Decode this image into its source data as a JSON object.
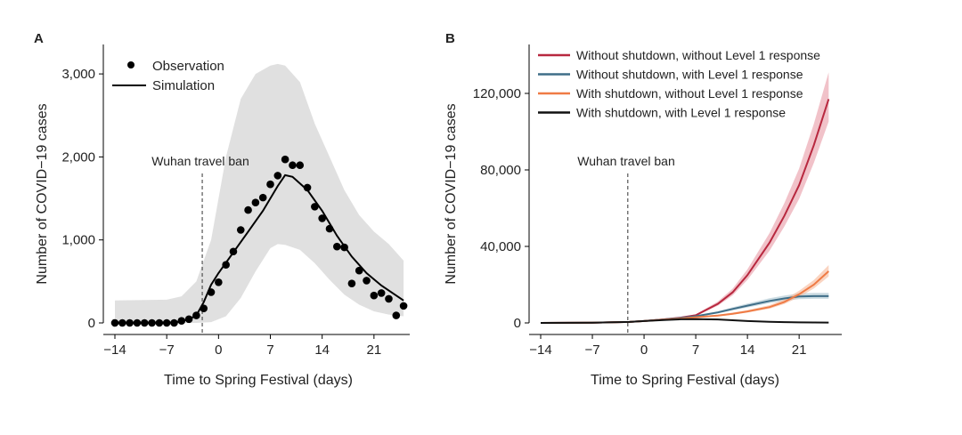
{
  "chart_data": [
    {
      "panel_label": "A",
      "type": "scatter+line",
      "xlabel": "Time to Spring Festival (days)",
      "ylabel": "Number of COVID−19 cases",
      "xlim": [
        -15,
        26
      ],
      "ylim": [
        0,
        3200
      ],
      "xticks": [
        -14,
        -7,
        0,
        7,
        14,
        21
      ],
      "xtick_labels": [
        "−14",
        "−7",
        "0",
        "7",
        "14",
        "21"
      ],
      "yticks": [
        0,
        1000,
        2000,
        3000
      ],
      "ytick_labels": [
        "0",
        "1,000",
        "2,000",
        "3,000"
      ],
      "legend": {
        "placement": "top-left",
        "entries": [
          "Observation",
          "Simulation"
        ]
      },
      "annotation": {
        "text": "Wuhan travel ban",
        "x": -2.2
      },
      "observation": {
        "x": [
          -14,
          -13,
          -12,
          -11,
          -10,
          -9,
          -8,
          -7,
          -6,
          -5,
          -4,
          -3,
          -2,
          -1,
          0,
          1,
          2,
          3,
          4,
          5,
          6,
          7,
          8,
          9,
          10,
          11,
          12,
          13,
          14,
          15,
          16,
          17,
          18,
          19,
          20,
          21,
          22,
          23,
          24,
          25
        ],
        "y": [
          0,
          0,
          0,
          0,
          0,
          0,
          0,
          0,
          0,
          25,
          45,
          90,
          175,
          370,
          490,
          700,
          860,
          1120,
          1360,
          1450,
          1510,
          1670,
          1775,
          1970,
          1900,
          1900,
          1630,
          1400,
          1260,
          1135,
          920,
          910,
          475,
          630,
          510,
          330,
          360,
          290,
          90,
          205
        ]
      },
      "simulation": {
        "x": [
          -14,
          -10,
          -6,
          -5,
          -4,
          -3,
          -2,
          -1,
          0,
          2,
          4,
          6,
          8,
          9,
          10,
          12,
          14,
          16,
          18,
          20,
          22,
          24,
          25
        ],
        "y": [
          0,
          0,
          5,
          20,
          45,
          90,
          250,
          460,
          600,
          850,
          1100,
          1350,
          1650,
          1780,
          1760,
          1600,
          1350,
          1050,
          800,
          600,
          450,
          330,
          270
        ]
      },
      "band": {
        "x": [
          -14,
          -7,
          -5,
          -3,
          -1,
          1,
          3,
          5,
          7,
          8,
          9,
          11,
          13,
          15,
          17,
          19,
          21,
          23,
          25
        ],
        "upper": [
          270,
          280,
          320,
          500,
          1000,
          2000,
          2700,
          3000,
          3100,
          3120,
          3100,
          2900,
          2400,
          2000,
          1600,
          1300,
          1100,
          950,
          750
        ],
        "lower": [
          0,
          0,
          0,
          0,
          10,
          80,
          300,
          620,
          900,
          950,
          940,
          880,
          720,
          520,
          340,
          220,
          140,
          100,
          80
        ]
      }
    },
    {
      "panel_label": "B",
      "type": "line",
      "xlabel": "Time to Spring Festival (days)",
      "ylabel": "Number of COVID−19 cases",
      "xlim": [
        -15,
        26
      ],
      "ylim": [
        -3000,
        140000
      ],
      "xticks": [
        -14,
        -7,
        0,
        7,
        14,
        21
      ],
      "xtick_labels": [
        "−14",
        "−7",
        "0",
        "7",
        "14",
        "21"
      ],
      "yticks": [
        0,
        40000,
        80000,
        120000
      ],
      "ytick_labels": [
        "0",
        "40,000",
        "80,000",
        "120,000"
      ],
      "legend": {
        "placement": "top-right"
      },
      "annotation": {
        "text": "Wuhan travel ban",
        "x": -2.2
      },
      "x": [
        -14,
        -7,
        -2,
        0,
        3,
        5,
        7,
        10,
        12,
        14,
        17,
        19,
        21,
        23,
        25
      ],
      "series": [
        {
          "name": "Without shutdown, without Level 1 response",
          "color": "#b8283f",
          "band_color": "#e89aa5",
          "values": [
            0,
            100,
            500,
            1000,
            2000,
            2800,
            4000,
            10000,
            16000,
            25000,
            42000,
            56000,
            72000,
            93000,
            117000
          ]
        },
        {
          "name": "Without shutdown, with Level 1 response",
          "color": "#3f6e88",
          "band_color": "#a9c3cf",
          "values": [
            0,
            100,
            500,
            1000,
            1900,
            2600,
            3500,
            5500,
            7300,
            9000,
            11500,
            12800,
            13800,
            14000,
            14000
          ]
        },
        {
          "name": "With shutdown, without Level 1 response",
          "color": "#ef7b45",
          "band_color": "#f6b898",
          "values": [
            0,
            100,
            500,
            1000,
            1800,
            2300,
            3000,
            3800,
            4800,
            6000,
            8300,
            11000,
            15000,
            20000,
            27000
          ]
        },
        {
          "name": "With shutdown, with Level 1 response",
          "color": "#111111",
          "band_color": "#888888",
          "values": [
            0,
            100,
            500,
            1000,
            1600,
            1900,
            2000,
            1800,
            1400,
            1000,
            600,
            400,
            300,
            250,
            200
          ]
        }
      ]
    }
  ]
}
